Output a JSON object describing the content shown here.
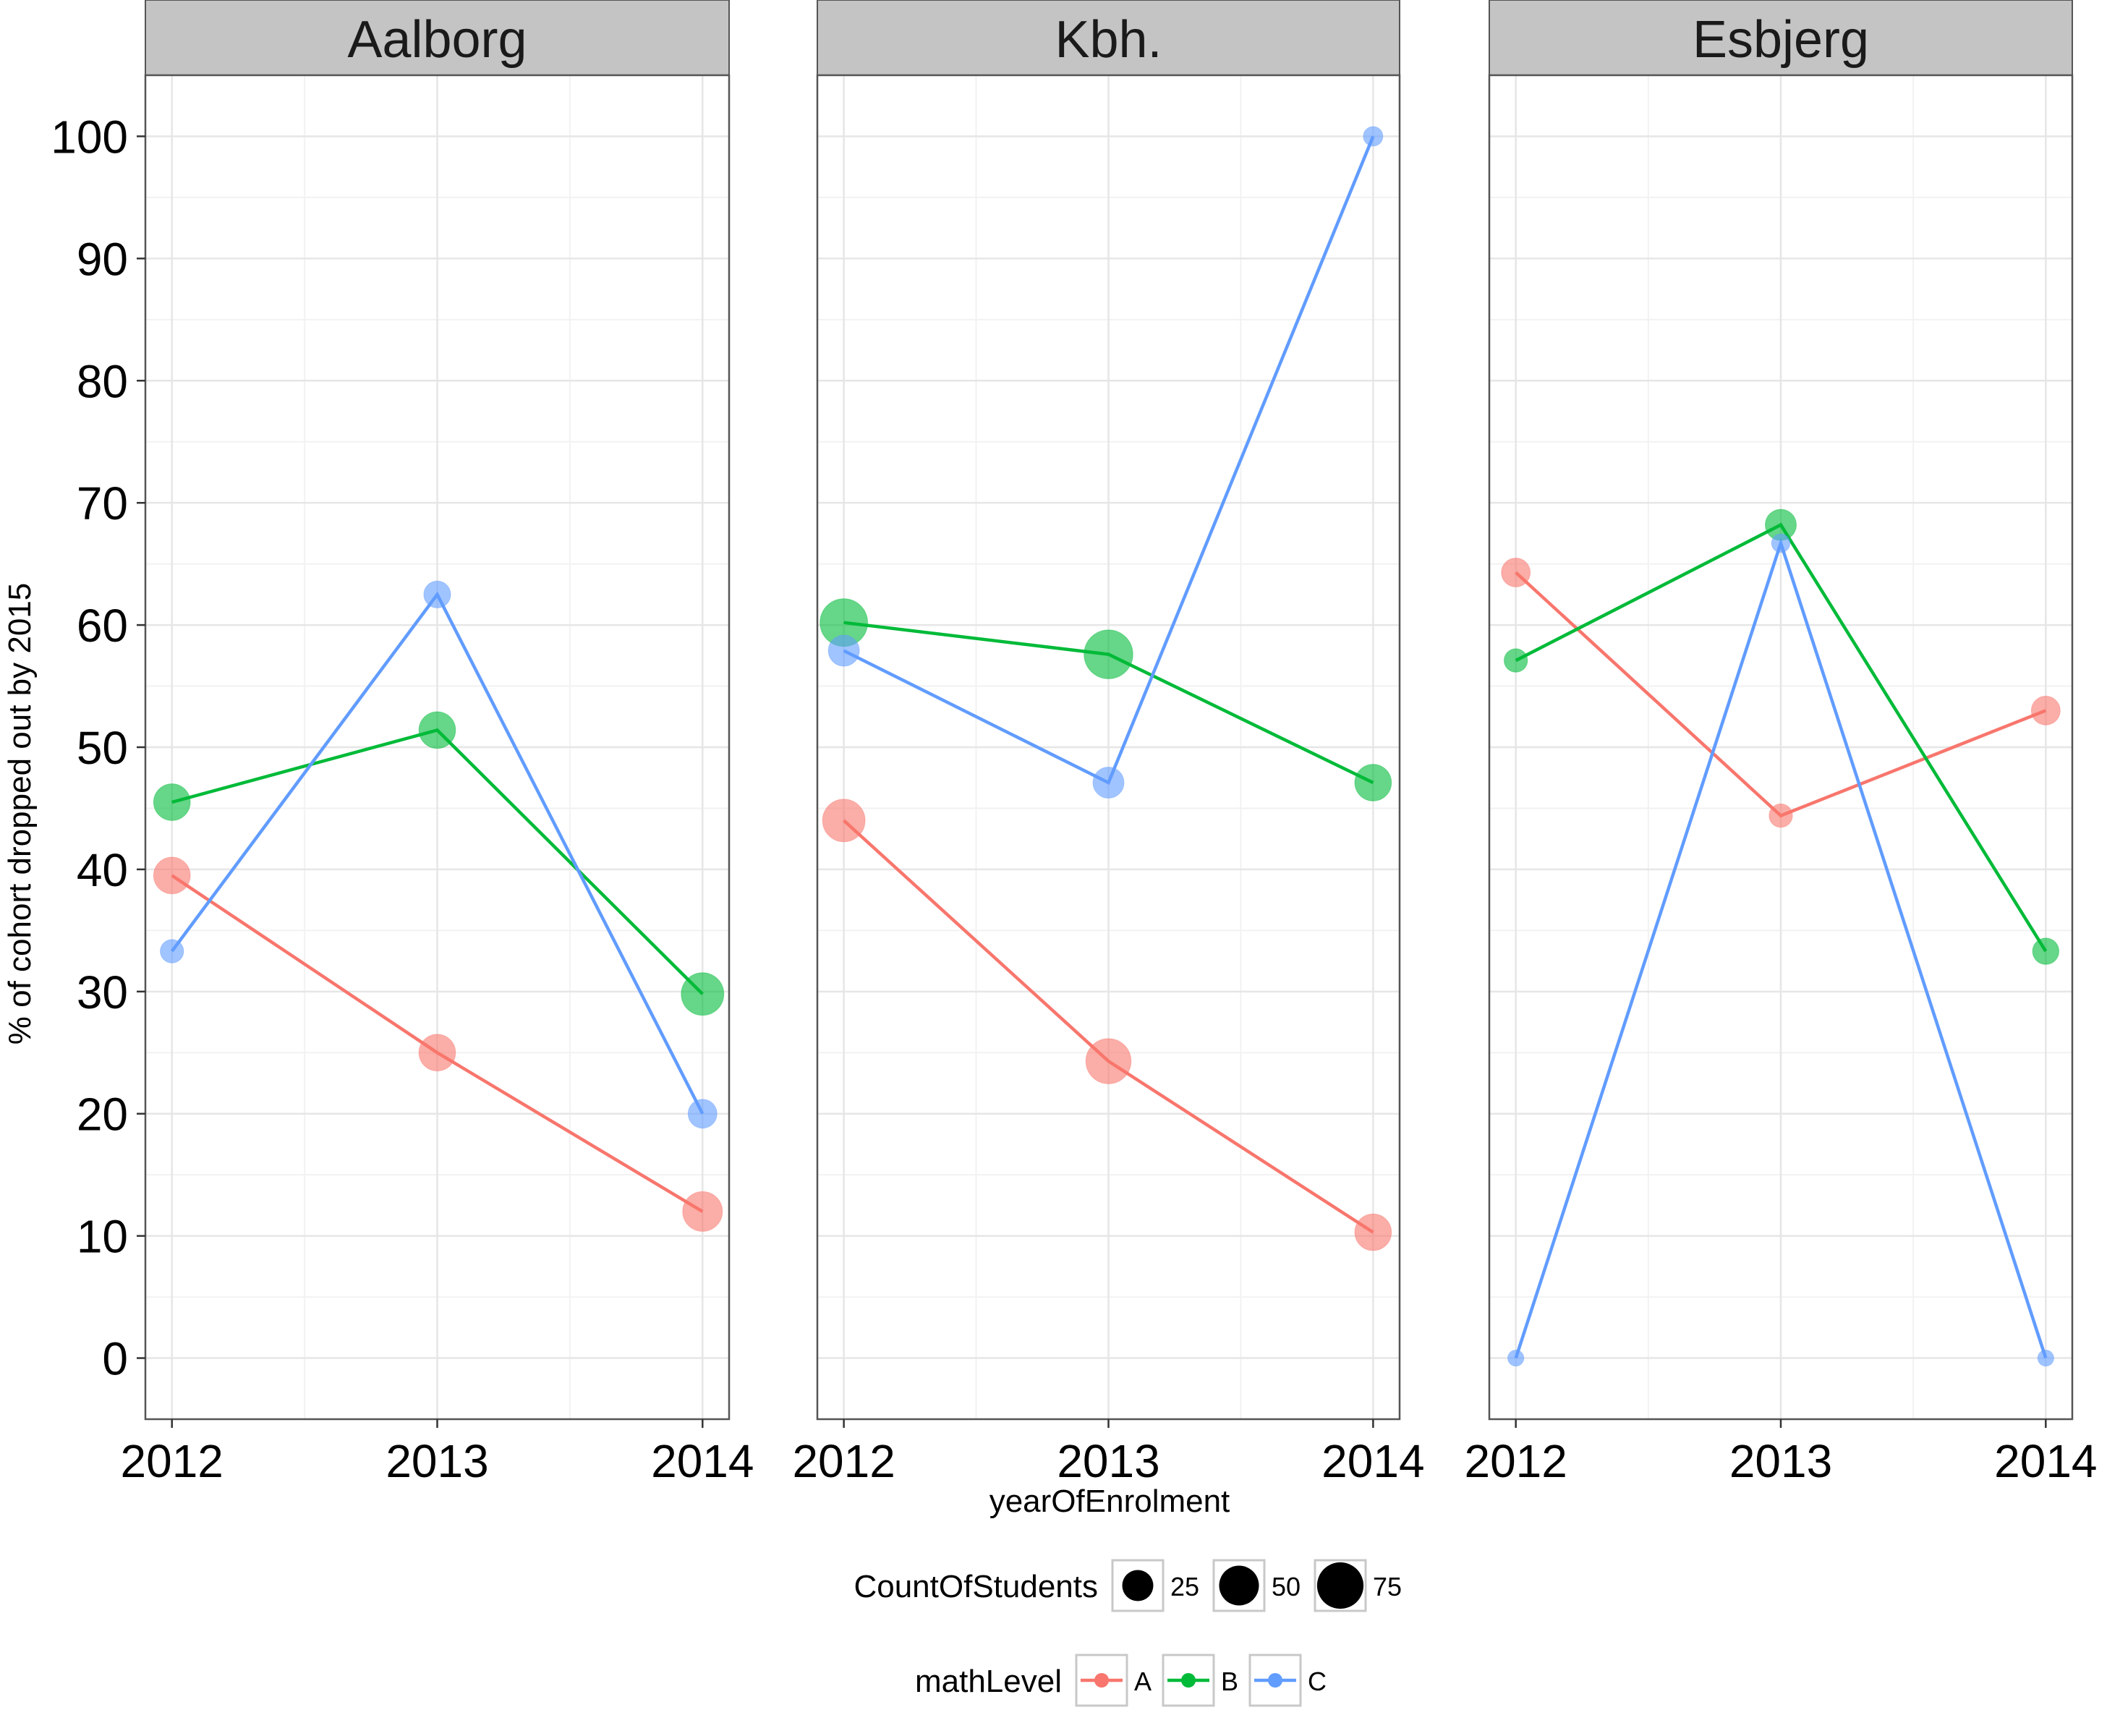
{
  "chart_data": {
    "type": "line",
    "facet_variable": "",
    "x": [
      2012,
      2013,
      2014
    ],
    "xlabel": "yearOfEnrolment",
    "ylabel": "% of cohort dropped out by 2015",
    "ylim": [
      -5,
      105
    ],
    "yticks": [
      0,
      10,
      20,
      30,
      40,
      50,
      60,
      70,
      80,
      90,
      100
    ],
    "grid": true,
    "legend_placement": "bottom",
    "facets": [
      {
        "name": "Aalborg",
        "series": [
          {
            "name": "A",
            "values": [
              39.5,
              25.0,
              12.0
            ],
            "counts": [
              40,
              40,
              50
            ]
          },
          {
            "name": "B",
            "values": [
              45.5,
              51.4,
              29.8
            ],
            "counts": [
              40,
              40,
              60
            ]
          },
          {
            "name": "C",
            "values": [
              33.3,
              62.5,
              20.0
            ],
            "counts": [
              10,
              16,
              20
            ]
          }
        ]
      },
      {
        "name": "Kbh.",
        "series": [
          {
            "name": "A",
            "values": [
              44.0,
              24.3,
              10.3
            ],
            "counts": [
              60,
              70,
              40
            ]
          },
          {
            "name": "B",
            "values": [
              60.2,
              57.6,
              47.1
            ],
            "counts": [
              80,
              85,
              40
            ]
          },
          {
            "name": "C",
            "values": [
              57.9,
              47.1,
              100.0
            ],
            "counts": [
              25,
              25,
              5
            ]
          }
        ]
      },
      {
        "name": "Esbjerg",
        "series": [
          {
            "name": "A",
            "values": [
              64.3,
              44.4,
              53.0
            ],
            "counts": [
              20,
              10,
              20
            ]
          },
          {
            "name": "B",
            "values": [
              57.1,
              68.2,
              33.3
            ],
            "counts": [
              10,
              25,
              15
            ]
          },
          {
            "name": "C",
            "values": [
              0.0,
              66.7,
              0.0
            ],
            "counts": [
              2,
              4,
              2
            ]
          }
        ]
      }
    ],
    "size_legend": {
      "title": "CountOfStudents",
      "entries": [
        25,
        50,
        75
      ]
    },
    "color_legend": {
      "title": "mathLevel",
      "entries": [
        "A",
        "B",
        "C"
      ]
    },
    "colors": {
      "A": "#F8766D",
      "B": "#00BA38",
      "C": "#619CFF"
    }
  }
}
